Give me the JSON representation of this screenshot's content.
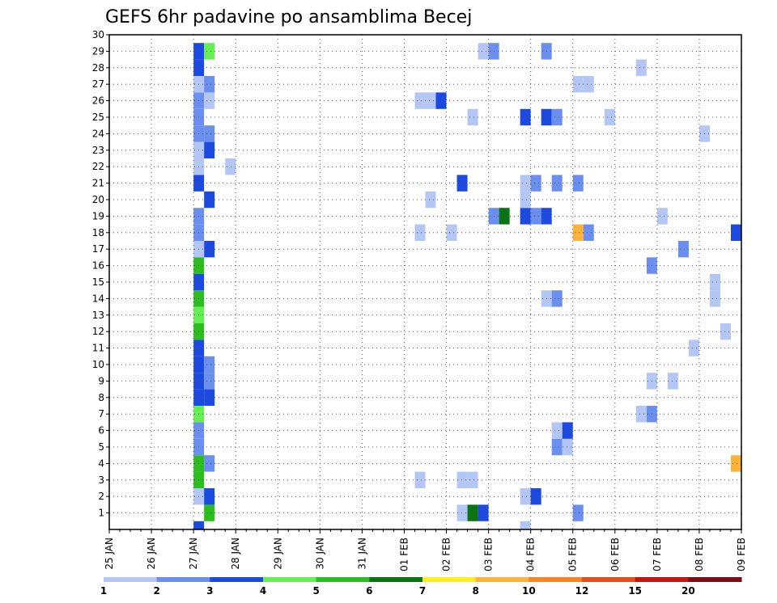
{
  "chart_data": {
    "type": "heatmap",
    "title": "GEFS 6hr padavine po ansamblima Becej",
    "xlabel": "",
    "ylabel": "",
    "x_tick_labels": [
      "25 JAN",
      "26 JAN",
      "27 JAN",
      "28 JAN",
      "29 JAN",
      "30 JAN",
      "31 JAN",
      "01 FEB",
      "02 FEB",
      "03 FEB",
      "04 FEB",
      "05 FEB",
      "06 FEB",
      "07 FEB",
      "08 FEB",
      "09 FEB"
    ],
    "x_range_days": [
      0,
      15
    ],
    "y_tick_labels": [
      "1",
      "2",
      "3",
      "4",
      "5",
      "6",
      "7",
      "8",
      "9",
      "10",
      "11",
      "12",
      "13",
      "14",
      "15",
      "16",
      "17",
      "18",
      "19",
      "20",
      "21",
      "22",
      "23",
      "24",
      "25",
      "26",
      "27",
      "28",
      "29",
      "30"
    ],
    "y_range": [
      0,
      30
    ],
    "grid": "dotted",
    "colorbar_labels": [
      "1",
      "2",
      "3",
      "4",
      "5",
      "6",
      "7",
      "8",
      "10",
      "12",
      "15",
      "20"
    ],
    "colors": [
      "#b3c6f5",
      "#6b8fef",
      "#1c49e0",
      "#66ee55",
      "#2cbd1e",
      "#0a7312",
      "#ffee22",
      "#ffb23a",
      "#f58620",
      "#e64f1a",
      "#c5160f",
      "#7a0e12"
    ],
    "cells_columns": [
      "day_offset",
      "member",
      "level_index"
    ],
    "cells": [
      [
        2.0,
        0,
        2
      ],
      [
        2.25,
        1,
        4
      ],
      [
        2.0,
        2,
        0
      ],
      [
        2.25,
        2,
        2
      ],
      [
        2.0,
        3,
        4
      ],
      [
        2.0,
        4,
        4
      ],
      [
        2.25,
        4,
        1
      ],
      [
        2.0,
        5,
        1
      ],
      [
        2.0,
        6,
        1
      ],
      [
        2.0,
        7,
        3
      ],
      [
        2.0,
        8,
        2
      ],
      [
        2.25,
        8,
        2
      ],
      [
        2.0,
        9,
        2
      ],
      [
        2.25,
        9,
        1
      ],
      [
        2.0,
        10,
        2
      ],
      [
        2.25,
        10,
        1
      ],
      [
        2.0,
        11,
        2
      ],
      [
        2.0,
        12,
        4
      ],
      [
        2.0,
        13,
        3
      ],
      [
        2.0,
        14,
        4
      ],
      [
        2.0,
        15,
        2
      ],
      [
        2.0,
        16,
        4
      ],
      [
        2.25,
        17,
        2
      ],
      [
        2.0,
        17,
        0
      ],
      [
        2.0,
        18,
        1
      ],
      [
        2.0,
        19,
        1
      ],
      [
        2.0,
        21,
        2
      ],
      [
        2.25,
        20,
        2
      ],
      [
        2.0,
        22,
        0
      ],
      [
        2.0,
        23,
        0
      ],
      [
        2.25,
        23,
        2
      ],
      [
        2.0,
        24,
        1
      ],
      [
        2.25,
        24,
        1
      ],
      [
        2.0,
        25,
        1
      ],
      [
        2.0,
        26,
        1
      ],
      [
        2.25,
        26,
        0
      ],
      [
        2.0,
        27,
        0
      ],
      [
        2.25,
        27,
        1
      ],
      [
        2.0,
        28,
        2
      ],
      [
        2.0,
        29,
        2
      ],
      [
        2.25,
        29,
        3
      ],
      [
        2.75,
        22,
        0
      ],
      [
        7.25,
        3,
        0
      ],
      [
        7.25,
        18,
        0
      ],
      [
        7.25,
        26,
        0
      ],
      [
        7.5,
        26,
        0
      ],
      [
        7.75,
        26,
        2
      ],
      [
        7.5,
        20,
        0
      ],
      [
        8.0,
        18,
        0
      ],
      [
        8.25,
        1,
        0
      ],
      [
        8.5,
        1,
        5
      ],
      [
        8.75,
        1,
        2
      ],
      [
        8.25,
        3,
        0
      ],
      [
        8.5,
        3,
        0
      ],
      [
        8.25,
        21,
        2
      ],
      [
        8.5,
        25,
        0
      ],
      [
        8.75,
        29,
        0
      ],
      [
        9.0,
        29,
        1
      ],
      [
        9.0,
        19,
        1
      ],
      [
        9.25,
        19,
        5
      ],
      [
        9.75,
        0,
        0
      ],
      [
        9.75,
        2,
        0
      ],
      [
        10.0,
        2,
        2
      ],
      [
        9.75,
        19,
        2
      ],
      [
        10.0,
        19,
        1
      ],
      [
        10.25,
        19,
        2
      ],
      [
        9.75,
        20,
        0
      ],
      [
        9.75,
        21,
        0
      ],
      [
        10.0,
        21,
        1
      ],
      [
        10.25,
        14,
        0
      ],
      [
        10.5,
        14,
        1
      ],
      [
        9.75,
        25,
        2
      ],
      [
        10.25,
        25,
        2
      ],
      [
        10.5,
        25,
        1
      ],
      [
        10.25,
        29,
        1
      ],
      [
        10.5,
        21,
        1
      ],
      [
        10.5,
        5,
        1
      ],
      [
        10.75,
        5,
        0
      ],
      [
        10.5,
        6,
        0
      ],
      [
        10.75,
        6,
        2
      ],
      [
        11.0,
        1,
        1
      ],
      [
        11.0,
        21,
        1
      ],
      [
        11.0,
        18,
        7
      ],
      [
        11.25,
        18,
        1
      ],
      [
        11.0,
        27,
        0
      ],
      [
        11.25,
        27,
        0
      ],
      [
        11.75,
        25,
        0
      ],
      [
        11.75,
        -1,
        0
      ],
      [
        12.5,
        28,
        0
      ],
      [
        12.5,
        7,
        0
      ],
      [
        12.75,
        7,
        1
      ],
      [
        12.75,
        16,
        1
      ],
      [
        12.75,
        9,
        0
      ],
      [
        13.0,
        19,
        0
      ],
      [
        13.25,
        9,
        0
      ],
      [
        13.5,
        17,
        1
      ],
      [
        13.75,
        11,
        0
      ],
      [
        14.0,
        24,
        0
      ],
      [
        14.25,
        14,
        0
      ],
      [
        14.25,
        15,
        0
      ],
      [
        14.5,
        12,
        0
      ],
      [
        14.75,
        18,
        2
      ],
      [
        14.75,
        4,
        7
      ],
      [
        15.0,
        4,
        10
      ],
      [
        15.0,
        12,
        3
      ],
      [
        15.0,
        7,
        3
      ],
      [
        15.0,
        17,
        1
      ],
      [
        15.0,
        29,
        1
      ],
      [
        2.0,
        -1,
        1
      ]
    ]
  }
}
